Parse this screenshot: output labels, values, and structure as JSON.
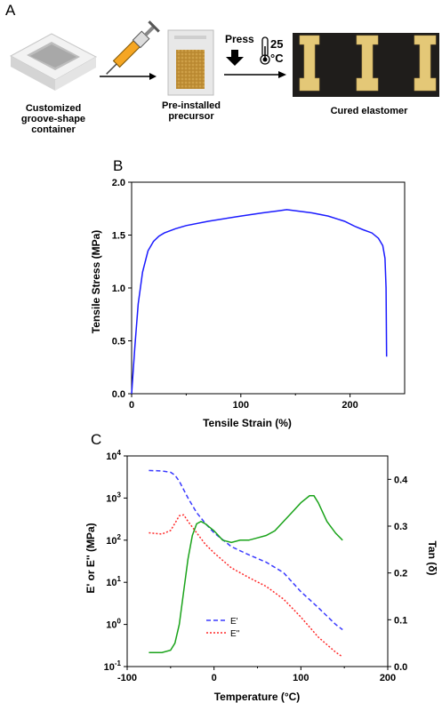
{
  "panel_a": {
    "letter": "A",
    "caption_container": [
      "Customized",
      "groove-shape",
      "container"
    ],
    "caption_precursor": [
      "Pre-installed",
      "precursor"
    ],
    "caption_elastomer": "Cured elastomer",
    "press_label": "Press",
    "temp_value": "25",
    "temp_unit": "°C"
  },
  "panel_b": {
    "letter": "B"
  },
  "panel_c": {
    "letter": "C"
  },
  "chart_data": [
    {
      "type": "line",
      "xlabel": "Tensile Strain (%)",
      "ylabel": "Tensile Stress (MPa)",
      "xlim": [
        0,
        250
      ],
      "ylim": [
        0,
        2.0
      ],
      "xticks": [
        "0",
        "100",
        "200"
      ],
      "yticks": [
        "0.0",
        "0.5",
        "1.0",
        "1.5",
        "2.0"
      ],
      "series": [
        {
          "color": "#1a1aff",
          "x": [
            0,
            3,
            6,
            10,
            15,
            20,
            25,
            30,
            40,
            50,
            70,
            100,
            120,
            135,
            142,
            150,
            165,
            180,
            195,
            205,
            212,
            220,
            226,
            230,
            232,
            233,
            233.5
          ],
          "y": [
            0,
            0.45,
            0.85,
            1.15,
            1.35,
            1.44,
            1.49,
            1.52,
            1.56,
            1.59,
            1.63,
            1.68,
            1.71,
            1.73,
            1.74,
            1.73,
            1.71,
            1.68,
            1.63,
            1.58,
            1.55,
            1.52,
            1.47,
            1.4,
            1.28,
            1.0,
            0.35
          ]
        }
      ]
    },
    {
      "type": "line",
      "xlabel": "Temperature (°C)",
      "ylabel": "E' or E'' (MPa)",
      "y2label": "Tan (δ)",
      "xlim": [
        -100,
        200
      ],
      "ylim_log": [
        -1,
        4
      ],
      "y2lim": [
        0,
        0.45
      ],
      "xticks": [
        "-100",
        "0",
        "100",
        "200"
      ],
      "yticks": [
        "10-1",
        "100",
        "101",
        "102",
        "103",
        "104"
      ],
      "y2ticks": [
        "0.0",
        "0.1",
        "0.2",
        "0.3",
        "0.4"
      ],
      "legend": [
        "E'",
        "E''"
      ],
      "series": [
        {
          "name": "E'",
          "color": "#3a3aff",
          "dash": "dashed",
          "axis": "left",
          "x": [
            -75,
            -60,
            -50,
            -45,
            -40,
            -30,
            -20,
            -10,
            0,
            20,
            40,
            60,
            80,
            100,
            120,
            140,
            148
          ],
          "y": [
            4500,
            4400,
            4100,
            3500,
            2500,
            1000,
            450,
            250,
            150,
            70,
            45,
            30,
            17,
            6,
            2.5,
            1.0,
            0.75
          ]
        },
        {
          "name": "E''",
          "color": "#ff2a2a",
          "dash": "dotted",
          "axis": "left",
          "x": [
            -75,
            -60,
            -50,
            -45,
            -40,
            -35,
            -30,
            -20,
            -10,
            0,
            20,
            40,
            60,
            80,
            100,
            120,
            140,
            148
          ],
          "y": [
            150,
            140,
            170,
            250,
            380,
            400,
            280,
            150,
            80,
            50,
            22,
            13,
            8,
            4,
            1.5,
            0.5,
            0.22,
            0.17
          ]
        },
        {
          "name": "tan",
          "color": "#1aa31a",
          "dash": "solid",
          "axis": "right",
          "x": [
            -75,
            -60,
            -50,
            -45,
            -40,
            -35,
            -30,
            -25,
            -20,
            -15,
            -10,
            0,
            10,
            20,
            30,
            40,
            50,
            60,
            70,
            80,
            90,
            100,
            110,
            115,
            120,
            130,
            140,
            148
          ],
          "y": [
            0.03,
            0.03,
            0.035,
            0.05,
            0.09,
            0.16,
            0.23,
            0.28,
            0.305,
            0.31,
            0.305,
            0.29,
            0.27,
            0.265,
            0.27,
            0.27,
            0.275,
            0.28,
            0.29,
            0.31,
            0.33,
            0.35,
            0.365,
            0.365,
            0.35,
            0.31,
            0.285,
            0.27
          ]
        }
      ]
    }
  ]
}
